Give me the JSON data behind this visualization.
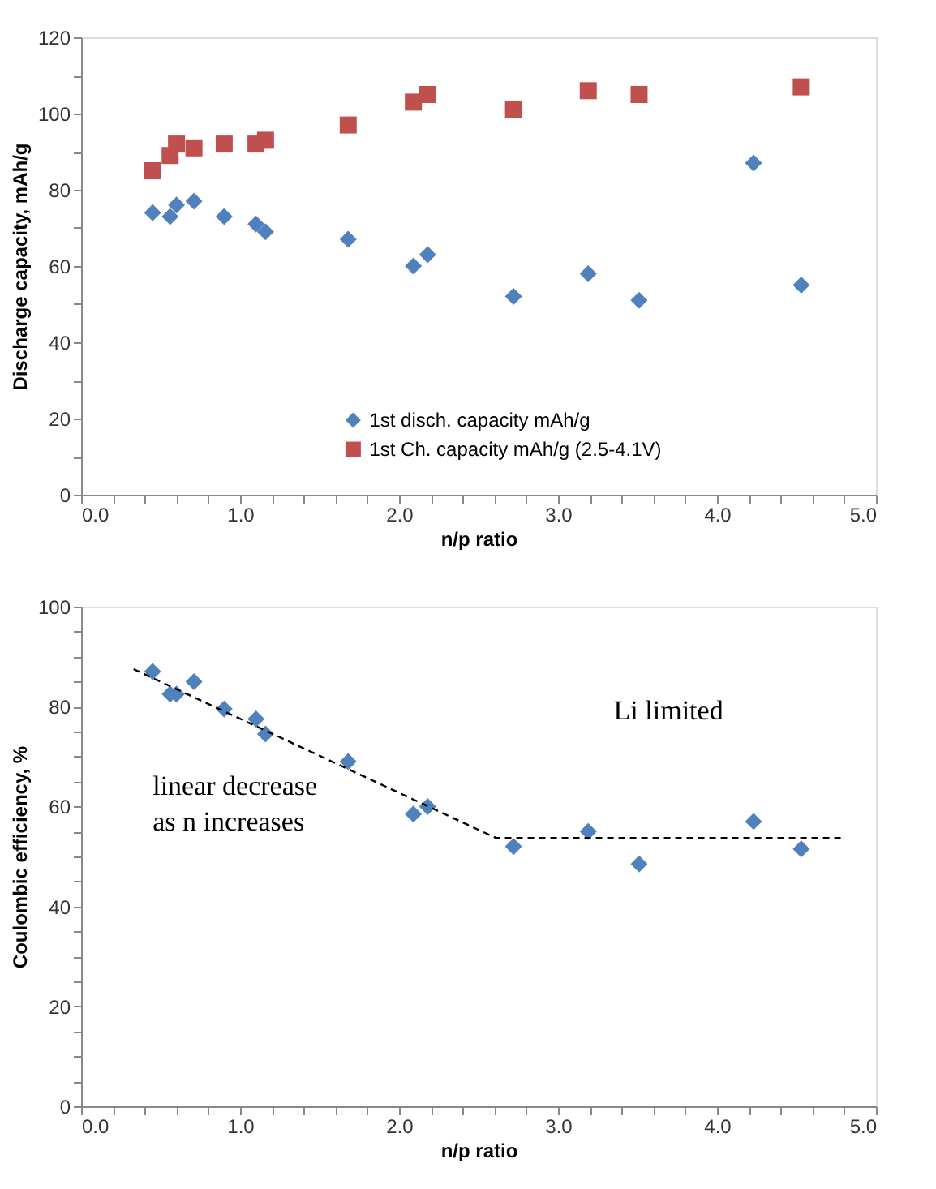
{
  "chart_data": [
    {
      "type": "scatter",
      "xlabel": "n/p ratio",
      "ylabel": "Discharge capacity, mAh/g",
      "xlim": [
        0,
        5
      ],
      "ylim": [
        0,
        120
      ],
      "xticks": [
        {
          "value": 0,
          "label": "0.0"
        },
        {
          "value": 0.2,
          "label": null
        },
        {
          "value": 0.4,
          "label": null
        },
        {
          "value": 0.6,
          "label": null
        },
        {
          "value": 0.8,
          "label": null
        },
        {
          "value": 1,
          "label": "1.0"
        },
        {
          "value": 1.2,
          "label": null
        },
        {
          "value": 1.4,
          "label": null
        },
        {
          "value": 1.6,
          "label": null
        },
        {
          "value": 1.8,
          "label": null
        },
        {
          "value": 2,
          "label": "2.0"
        },
        {
          "value": 2.2,
          "label": null
        },
        {
          "value": 2.4,
          "label": null
        },
        {
          "value": 2.6,
          "label": null
        },
        {
          "value": 2.8,
          "label": null
        },
        {
          "value": 3,
          "label": "3.0"
        },
        {
          "value": 3.2,
          "label": null
        },
        {
          "value": 3.4,
          "label": null
        },
        {
          "value": 3.6,
          "label": null
        },
        {
          "value": 3.8,
          "label": null
        },
        {
          "value": 4,
          "label": "4.0"
        },
        {
          "value": 4.2,
          "label": null
        },
        {
          "value": 4.4,
          "label": null
        },
        {
          "value": 4.6,
          "label": null
        },
        {
          "value": 4.8,
          "label": null
        },
        {
          "value": 5,
          "label": "5.0"
        }
      ],
      "yticks": [
        0,
        {
          "value": 10,
          "label": null
        },
        20,
        {
          "value": 30,
          "label": null
        },
        40,
        {
          "value": 50,
          "label": null
        },
        60,
        {
          "value": 70,
          "label": null
        },
        80,
        {
          "value": 90,
          "label": null
        },
        100,
        {
          "value": 110,
          "label": null
        },
        120
      ],
      "grid": false,
      "legend": "bottom",
      "series": [
        {
          "name": "1st disch. capacity mAh/g",
          "color": "#4f81bd",
          "marker": "diamond",
          "x": [
            0.45,
            0.56,
            0.6,
            0.71,
            0.9,
            1.1,
            1.16,
            1.68,
            2.09,
            2.18,
            2.72,
            3.19,
            3.51,
            4.23,
            4.53
          ],
          "values": [
            74,
            73,
            76,
            77,
            73,
            71,
            69,
            67,
            60,
            63,
            52,
            58,
            51,
            87,
            55
          ]
        },
        {
          "name": "1st Ch. capacity mAh/g (2.5-4.1V)",
          "color": "#c0504d",
          "marker": "square",
          "x": [
            0.45,
            0.56,
            0.6,
            0.71,
            0.9,
            1.1,
            1.16,
            1.68,
            2.09,
            2.18,
            2.72,
            3.19,
            3.51,
            4.53
          ],
          "values": [
            85,
            89,
            92,
            91,
            92,
            92,
            93,
            97,
            103,
            105,
            101,
            106,
            105,
            107
          ]
        }
      ]
    },
    {
      "type": "scatter",
      "xlabel": "n/p ratio",
      "ylabel": "Coulombic efficiency, %",
      "xlim": [
        0,
        5
      ],
      "ylim": [
        0,
        100
      ],
      "xticks": [
        {
          "value": 0,
          "label": "0.0"
        },
        {
          "value": 0.2,
          "label": null
        },
        {
          "value": 0.4,
          "label": null
        },
        {
          "value": 0.6,
          "label": null
        },
        {
          "value": 0.8,
          "label": null
        },
        {
          "value": 1,
          "label": "1.0"
        },
        {
          "value": 1.2,
          "label": null
        },
        {
          "value": 1.4,
          "label": null
        },
        {
          "value": 1.6,
          "label": null
        },
        {
          "value": 1.8,
          "label": null
        },
        {
          "value": 2,
          "label": "2.0"
        },
        {
          "value": 2.2,
          "label": null
        },
        {
          "value": 2.4,
          "label": null
        },
        {
          "value": 2.6,
          "label": null
        },
        {
          "value": 2.8,
          "label": null
        },
        {
          "value": 3,
          "label": "3.0"
        },
        {
          "value": 3.2,
          "label": null
        },
        {
          "value": 3.4,
          "label": null
        },
        {
          "value": 3.6,
          "label": null
        },
        {
          "value": 3.8,
          "label": null
        },
        {
          "value": 4,
          "label": "4.0"
        },
        {
          "value": 4.2,
          "label": null
        },
        {
          "value": 4.4,
          "label": null
        },
        {
          "value": 4.6,
          "label": null
        },
        {
          "value": 4.8,
          "label": null
        },
        {
          "value": 5,
          "label": "5.0"
        }
      ],
      "yticks": [
        0,
        {
          "value": 5,
          "label": null
        },
        {
          "value": 10,
          "label": null
        },
        {
          "value": 15,
          "label": null
        },
        20,
        {
          "value": 25,
          "label": null
        },
        {
          "value": 30,
          "label": null
        },
        {
          "value": 35,
          "label": null
        },
        40,
        {
          "value": 45,
          "label": null
        },
        {
          "value": 50,
          "label": null
        },
        {
          "value": 55,
          "label": null
        },
        60,
        {
          "value": 65,
          "label": null
        },
        {
          "value": 70,
          "label": null
        },
        {
          "value": 75,
          "label": null
        },
        80,
        {
          "value": 85,
          "label": null
        },
        {
          "value": 90,
          "label": null
        },
        {
          "value": 95,
          "label": null
        },
        100
      ],
      "grid": false,
      "series": [
        {
          "color": "#4f81bd",
          "marker": "diamond",
          "x": [
            0.45,
            0.56,
            0.6,
            0.71,
            0.9,
            1.1,
            1.16,
            1.68,
            2.09,
            2.18,
            2.72,
            3.19,
            3.51,
            4.23,
            4.53
          ],
          "values": [
            87,
            82.5,
            82.5,
            85,
            79.5,
            77.5,
            74.5,
            69,
            58.5,
            60,
            52,
            55,
            48.5,
            57,
            51.5
          ]
        },
        {
          "type": "line",
          "color": "#000000",
          "line_style": "dashed",
          "marker": "none",
          "x": [
            0.33,
            2.61,
            4.8
          ],
          "values": [
            87.5,
            53.7,
            53.7
          ]
        }
      ],
      "annotations": [
        "linear decrease\nas n increases",
        "Li limited"
      ]
    }
  ]
}
